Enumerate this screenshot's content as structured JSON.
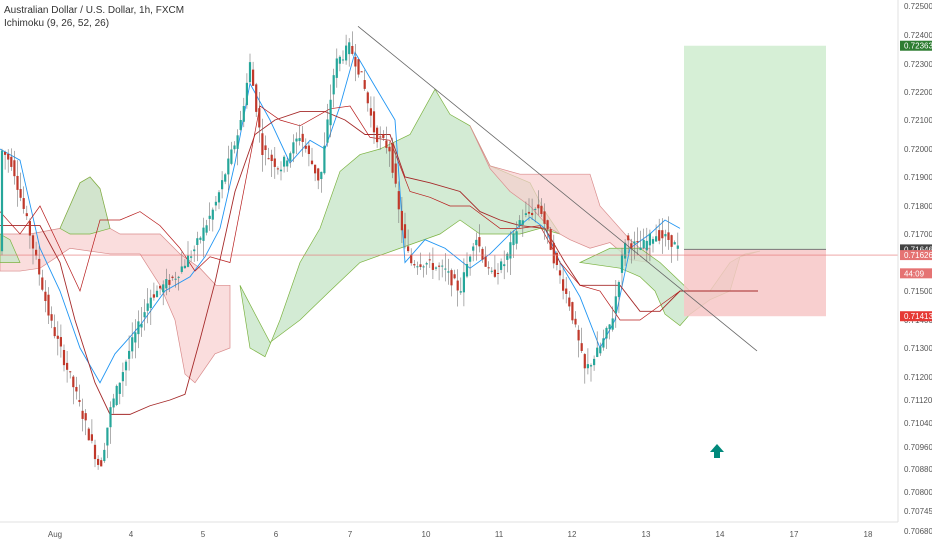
{
  "header": {
    "symbol": "Australian Dollar / U.S. Dollar, 1h, FXCM",
    "indicator": "Ichimoku (9, 26, 52, 26)"
  },
  "colors": {
    "up": "#26a69a",
    "down": "#c0392b",
    "conversion": "#2196f3",
    "base": "#a52a2a",
    "lagging": "#7cb342",
    "cloud_bull": "#c8e6c9",
    "cloud_bear": "#f8cfcf",
    "target_zone": "#cfeccf",
    "stop_zone": "#f7c7c7",
    "trendline": "#666666",
    "arrow": "#00897b"
  },
  "chart_data": {
    "type": "candlestick",
    "ylim": [
      0.7068,
      0.7252
    ],
    "y_ticks": [
      "0.72500",
      "0.72400",
      "0.72300",
      "0.72200",
      "0.72100",
      "0.72000",
      "0.71900",
      "0.71800",
      "0.71700",
      "0.71500",
      "0.71400",
      "0.71300",
      "0.71200",
      "0.71120",
      "0.71040",
      "0.70960",
      "0.70880",
      "0.70800",
      "0.70745",
      "0.70680"
    ],
    "x_ticks": [
      "Aug",
      "4",
      "5",
      "6",
      "7",
      "10",
      "11",
      "12",
      "13",
      "14",
      "17",
      "18"
    ],
    "price_labels": [
      {
        "text": "0.72363",
        "value": 0.72363,
        "color": "#2e7d32"
      },
      {
        "text": "0.71646",
        "value": 0.71646,
        "color": "#444444"
      },
      {
        "text": "0.71626",
        "value": 0.71626,
        "color": "#e57373"
      },
      {
        "text": "44:09",
        "value": 0.71562,
        "color": "#e57373"
      },
      {
        "text": "0.71413",
        "value": 0.71413,
        "color": "#e53935"
      }
    ],
    "current_price": 0.71626,
    "long_position": {
      "entry": 0.71646,
      "target": 0.72363,
      "stop": 0.71413
    },
    "trendline": {
      "from": 0.7243,
      "to": 0.7129
    }
  }
}
